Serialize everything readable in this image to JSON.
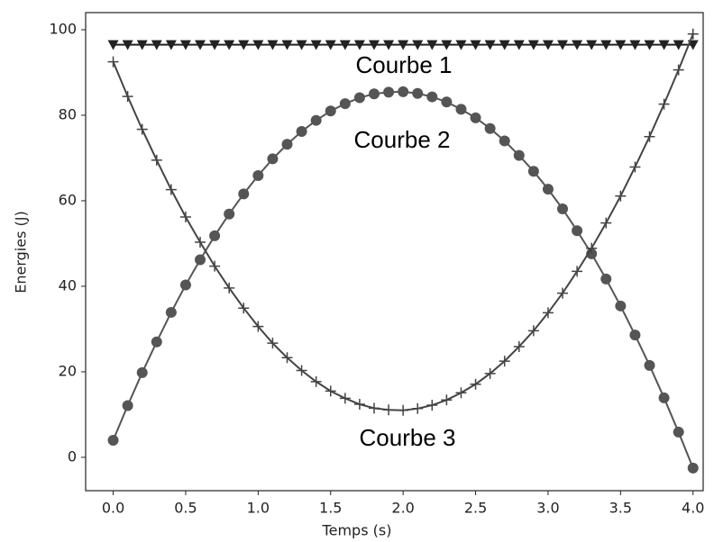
{
  "chart_data": {
    "type": "line",
    "xlabel": "Temps (s)",
    "ylabel": "Energies (J)",
    "x": [
      0.0,
      0.1,
      0.2,
      0.3,
      0.4,
      0.5,
      0.6,
      0.7,
      0.8,
      0.9,
      1.0,
      1.1,
      1.2,
      1.3,
      1.4,
      1.5,
      1.6,
      1.7,
      1.8,
      1.9,
      2.0,
      2.1,
      2.2,
      2.3,
      2.4,
      2.5,
      2.6,
      2.7,
      2.8,
      2.9,
      3.0,
      3.1,
      3.2,
      3.3,
      3.4,
      3.5,
      3.6,
      3.7,
      3.8,
      3.9,
      4.0
    ],
    "series": [
      {
        "name": "Courbe 1",
        "color": "#222222",
        "marker": "triangle",
        "values": [
          96.5,
          96.5,
          96.5,
          96.5,
          96.5,
          96.5,
          96.5,
          96.5,
          96.5,
          96.5,
          96.5,
          96.5,
          96.5,
          96.5,
          96.5,
          96.5,
          96.5,
          96.5,
          96.5,
          96.5,
          96.5,
          96.5,
          96.5,
          96.5,
          96.5,
          96.5,
          96.5,
          96.5,
          96.5,
          96.5,
          96.5,
          96.5,
          96.5,
          96.5,
          96.5,
          96.5,
          96.5,
          96.5,
          96.5,
          96.5,
          96.5
        ]
      },
      {
        "name": "Courbe 2",
        "color": "#555555",
        "marker": "circle",
        "values": [
          4.0,
          12.1,
          19.8,
          27.0,
          33.9,
          40.3,
          46.2,
          51.8,
          56.9,
          61.6,
          65.9,
          69.8,
          73.2,
          76.2,
          78.8,
          81.0,
          82.7,
          84.1,
          85.0,
          85.4,
          85.5,
          85.1,
          84.3,
          83.1,
          81.4,
          79.4,
          76.9,
          74.0,
          70.6,
          66.9,
          62.7,
          58.1,
          53.0,
          47.6,
          41.7,
          35.4,
          28.6,
          21.5,
          13.9,
          5.9,
          -2.5
        ]
      },
      {
        "name": "Courbe 3",
        "color": "#444444",
        "marker": "plus",
        "values": [
          92.5,
          84.4,
          76.7,
          69.5,
          62.6,
          56.2,
          50.3,
          44.7,
          39.6,
          34.9,
          30.6,
          26.7,
          23.3,
          20.3,
          17.7,
          15.5,
          13.8,
          12.4,
          11.5,
          11.1,
          11.0,
          11.4,
          12.2,
          13.4,
          15.1,
          17.1,
          19.6,
          22.5,
          25.9,
          29.6,
          33.8,
          38.4,
          43.5,
          48.9,
          54.8,
          61.1,
          67.9,
          75.0,
          82.6,
          90.6,
          99.0
        ]
      }
    ],
    "xlim": [
      -0.19,
      4.07
    ],
    "xticks": [
      {
        "value": 0,
        "label": "0.0"
      },
      {
        "value": 0.5,
        "label": "0.5"
      },
      {
        "value": 1,
        "label": "1.0"
      },
      {
        "value": 1.5,
        "label": "1.5"
      },
      {
        "value": 2,
        "label": "2.0"
      },
      {
        "value": 2.5,
        "label": "2.5"
      },
      {
        "value": 3,
        "label": "3.0"
      },
      {
        "value": 3.5,
        "label": "3.5"
      },
      {
        "value": 4,
        "label": "4.0"
      }
    ],
    "ylim": [
      -7.8,
      104
    ],
    "yticks": [
      0,
      20,
      40,
      60,
      80,
      100
    ],
    "grid": false
  }
}
